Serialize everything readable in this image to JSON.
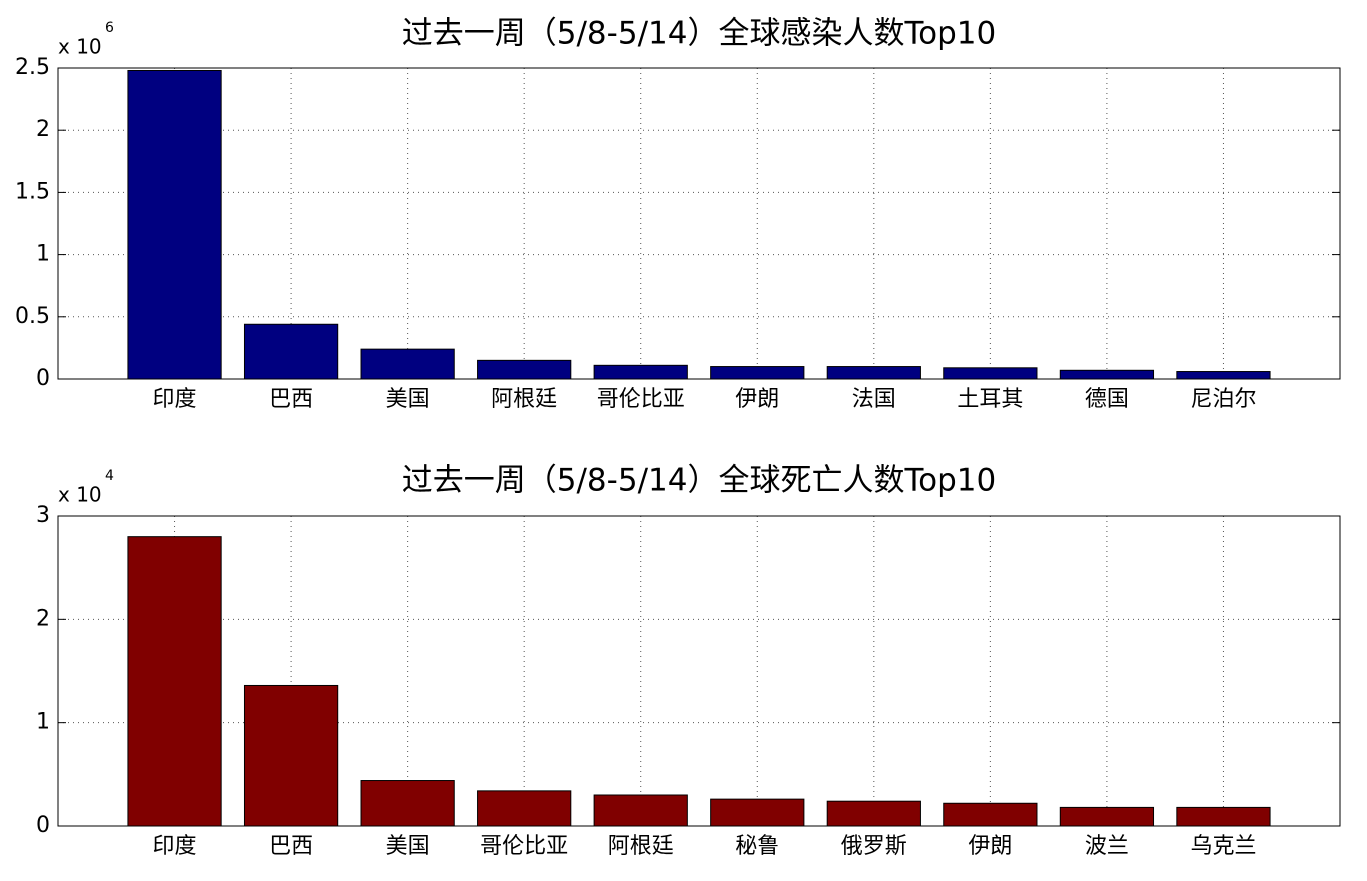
{
  "chart_data": [
    {
      "type": "bar",
      "title": "过去一周（5/8-5/14）全球感染人数Top10",
      "axis_multiplier": {
        "base": "x 10",
        "exponent": "6"
      },
      "categories": [
        "印度",
        "巴西",
        "美国",
        "阿根廷",
        "哥伦比亚",
        "伊朗",
        "法国",
        "土耳其",
        "德国",
        "尼泊尔"
      ],
      "values": [
        2.48,
        0.44,
        0.24,
        0.15,
        0.11,
        0.1,
        0.1,
        0.09,
        0.07,
        0.06
      ],
      "color": "#000080",
      "ylim": [
        0,
        2.5
      ],
      "yticks": [
        0,
        0.5,
        1,
        1.5,
        2,
        2.5
      ],
      "grid": true
    },
    {
      "type": "bar",
      "title": "过去一周（5/8-5/14）全球死亡人数Top10",
      "axis_multiplier": {
        "base": "x 10",
        "exponent": "4"
      },
      "categories": [
        "印度",
        "巴西",
        "美国",
        "哥伦比亚",
        "阿根廷",
        "秘鲁",
        "俄罗斯",
        "伊朗",
        "波兰",
        "乌克兰"
      ],
      "values": [
        2.8,
        1.36,
        0.44,
        0.34,
        0.3,
        0.26,
        0.24,
        0.22,
        0.18,
        0.18
      ],
      "color": "#800000",
      "ylim": [
        0,
        3
      ],
      "yticks": [
        0,
        1,
        2,
        3
      ],
      "grid": true
    }
  ]
}
